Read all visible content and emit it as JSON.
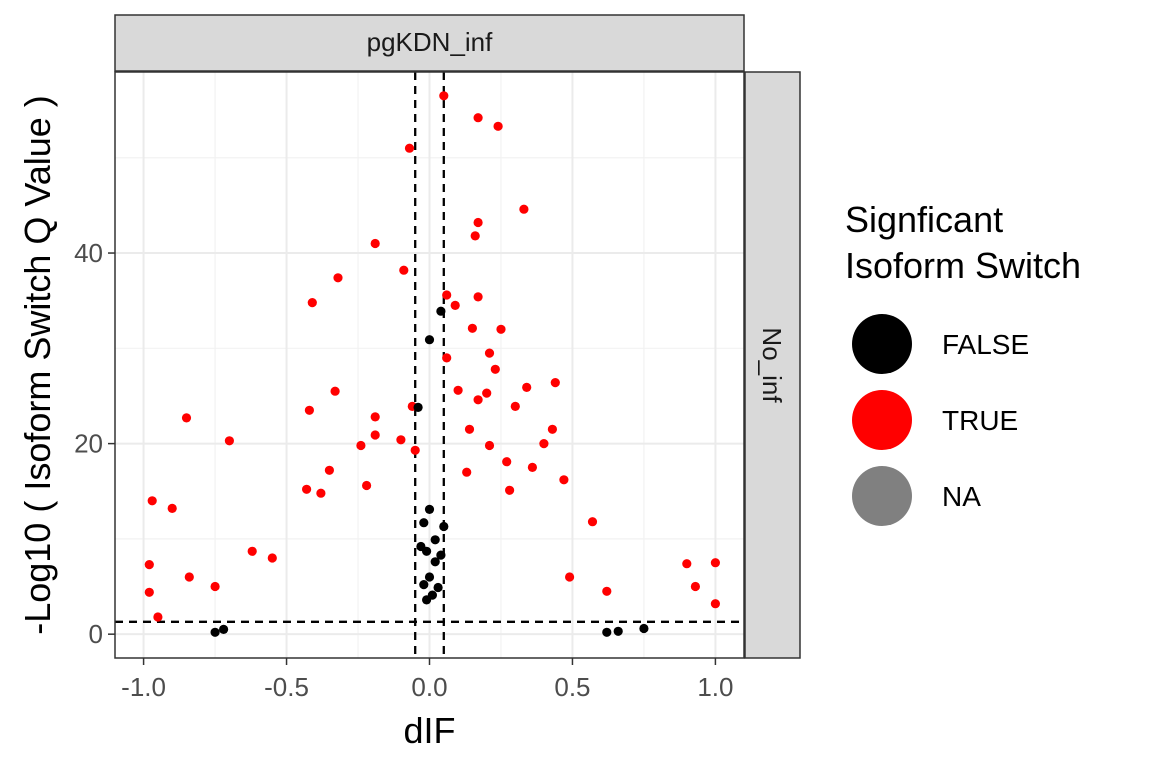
{
  "chart_data": {
    "type": "scatter",
    "title": "",
    "facet_column": "pgKDN_inf",
    "facet_row": "No_inf",
    "xlabel": "dIF",
    "ylabel": "-Log10 ( Isoform Switch Q Value )",
    "xlim": [
      -1.1,
      1.1
    ],
    "ylim": [
      -2.5,
      59
    ],
    "x_ticks": [
      -1.0,
      -0.5,
      0.0,
      0.5,
      1.0
    ],
    "x_tick_labels": [
      "-1.0",
      "-0.5",
      "0.0",
      "0.5",
      "1.0"
    ],
    "y_ticks": [
      0,
      20,
      40
    ],
    "y_tick_labels": [
      "0",
      "20",
      "40"
    ],
    "grid": true,
    "reference_lines": {
      "vertical": [
        -0.05,
        0.05
      ],
      "horizontal": [
        1.3
      ]
    },
    "legend": {
      "title": [
        "Signficant",
        "Isoform Switch"
      ],
      "position": "right",
      "entries": [
        {
          "label": "FALSE",
          "color": "#000000"
        },
        {
          "label": "TRUE",
          "color": "#ff0000"
        },
        {
          "label": "NA",
          "color": "#808080"
        }
      ]
    },
    "series": [
      {
        "name": "TRUE",
        "color": "#ff0000",
        "points": [
          [
            0.05,
            56.5
          ],
          [
            0.17,
            54.2
          ],
          [
            0.24,
            53.3
          ],
          [
            -0.07,
            51.0
          ],
          [
            0.33,
            44.6
          ],
          [
            0.17,
            43.2
          ],
          [
            0.16,
            41.8
          ],
          [
            -0.19,
            41.0
          ],
          [
            -0.09,
            38.2
          ],
          [
            -0.32,
            37.4
          ],
          [
            0.06,
            35.6
          ],
          [
            0.17,
            35.4
          ],
          [
            0.09,
            34.5
          ],
          [
            -0.41,
            34.8
          ],
          [
            0.15,
            32.1
          ],
          [
            0.25,
            32.0
          ],
          [
            0.21,
            29.5
          ],
          [
            0.06,
            29.0
          ],
          [
            0.23,
            27.8
          ],
          [
            0.44,
            26.4
          ],
          [
            0.34,
            25.9
          ],
          [
            -0.33,
            25.5
          ],
          [
            0.1,
            25.6
          ],
          [
            0.2,
            25.3
          ],
          [
            0.17,
            24.6
          ],
          [
            0.3,
            23.9
          ],
          [
            -0.06,
            23.9
          ],
          [
            -0.42,
            23.5
          ],
          [
            -0.19,
            22.8
          ],
          [
            -0.85,
            22.7
          ],
          [
            0.14,
            21.5
          ],
          [
            0.43,
            21.5
          ],
          [
            0.4,
            20.0
          ],
          [
            -0.19,
            20.9
          ],
          [
            -0.1,
            20.4
          ],
          [
            -0.24,
            19.8
          ],
          [
            -0.05,
            19.3
          ],
          [
            0.21,
            19.8
          ],
          [
            -0.7,
            20.3
          ],
          [
            0.27,
            18.1
          ],
          [
            0.36,
            17.5
          ],
          [
            -0.35,
            17.2
          ],
          [
            0.13,
            17.0
          ],
          [
            0.47,
            16.2
          ],
          [
            -0.43,
            15.2
          ],
          [
            0.28,
            15.1
          ],
          [
            -0.38,
            14.8
          ],
          [
            -0.22,
            15.6
          ],
          [
            -0.97,
            14.0
          ],
          [
            -0.9,
            13.2
          ],
          [
            0.57,
            11.8
          ],
          [
            -0.62,
            8.7
          ],
          [
            -0.98,
            7.3
          ],
          [
            -0.84,
            6.0
          ],
          [
            0.9,
            7.4
          ],
          [
            1.0,
            7.5
          ],
          [
            0.93,
            5.0
          ],
          [
            -0.98,
            4.4
          ],
          [
            -0.95,
            1.8
          ],
          [
            1.0,
            3.2
          ],
          [
            -0.75,
            5.0
          ],
          [
            0.62,
            4.5
          ],
          [
            -0.55,
            8.0
          ],
          [
            0.49,
            6.0
          ]
        ]
      },
      {
        "name": "FALSE",
        "color": "#000000",
        "points": [
          [
            0.04,
            33.9
          ],
          [
            0.0,
            30.9
          ],
          [
            -0.04,
            23.8
          ],
          [
            0.0,
            13.1
          ],
          [
            0.05,
            11.3
          ],
          [
            -0.02,
            11.7
          ],
          [
            0.02,
            9.9
          ],
          [
            -0.03,
            9.2
          ],
          [
            0.04,
            8.3
          ],
          [
            -0.01,
            8.7
          ],
          [
            0.02,
            7.6
          ],
          [
            0.0,
            6.0
          ],
          [
            -0.02,
            5.2
          ],
          [
            0.03,
            4.9
          ],
          [
            0.01,
            4.1
          ],
          [
            -0.01,
            3.6
          ],
          [
            -0.75,
            0.2
          ],
          [
            -0.72,
            0.5
          ],
          [
            0.66,
            0.3
          ],
          [
            0.75,
            0.6
          ],
          [
            0.62,
            0.2
          ]
        ]
      }
    ]
  }
}
